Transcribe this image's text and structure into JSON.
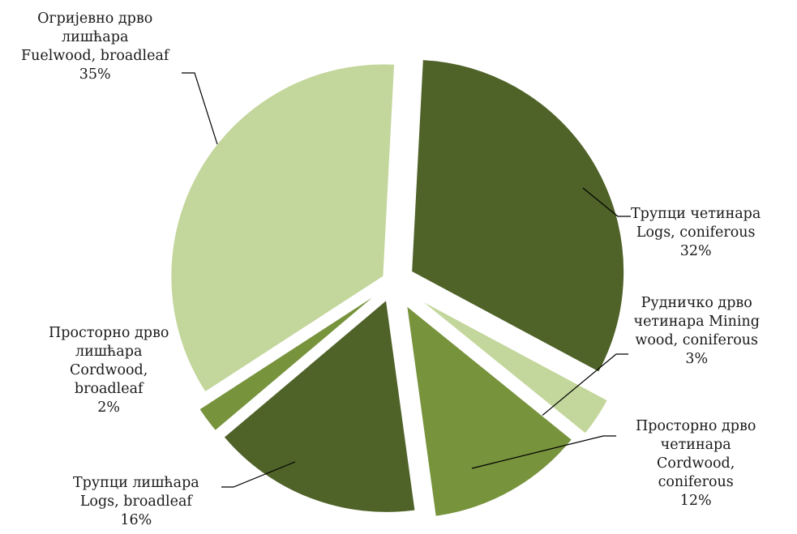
{
  "chart_data": {
    "type": "pie",
    "exploded": true,
    "slices": [
      {
        "label_lines": [
          "Трупци четинара",
          "Logs, coniferous"
        ],
        "value": 32,
        "value_label": "32%",
        "color": "#4f6228"
      },
      {
        "label_lines": [
          "Рудничко дрво",
          "четинара Mining",
          "wood, coniferous"
        ],
        "value": 3,
        "value_label": "3%",
        "color": "#c3d69b"
      },
      {
        "label_lines": [
          "Просторно дрво",
          "четинара",
          "Cordwood,",
          "coniferous"
        ],
        "value": 12,
        "value_label": "12%",
        "color": "#77933c"
      },
      {
        "label_lines": [
          "Трупци лишћара",
          "Logs, broadleaf"
        ],
        "value": 16,
        "value_label": "16%",
        "color": "#4f6228"
      },
      {
        "label_lines": [
          "Просторно дрво",
          "лишћара",
          "Cordwood,",
          "broadleaf"
        ],
        "value": 2,
        "value_label": "2%",
        "color": "#77933c"
      },
      {
        "label_lines": [
          "Огријевно дрво",
          "лишћара",
          "Fuelwood, broadleaf"
        ],
        "value": 35,
        "value_label": "35%",
        "color": "#c3d69b"
      }
    ]
  }
}
